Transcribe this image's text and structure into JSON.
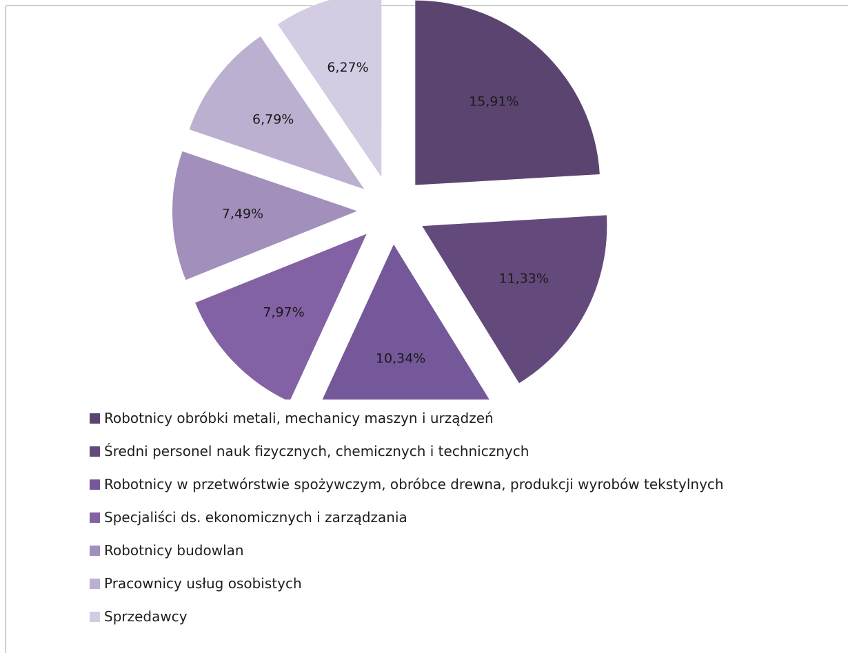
{
  "chart_data": {
    "type": "pie",
    "exploded": true,
    "legend_position": "bottom",
    "slices": [
      {
        "name": "Robotnicy obróbki metali, mechanicy maszyn i urządzeń",
        "value": 15.91,
        "label": "15,91%",
        "color": "#5c4470"
      },
      {
        "name": "Średni personel nauk fizycznych, chemicznych i technicznych",
        "value": 11.33,
        "label": "11,33%",
        "color": "#644a7c"
      },
      {
        "name": "Robotnicy w przetwórstwie spożywczym, obróbce drewna, produkcji wyrobów tekstylnych",
        "value": 10.34,
        "label": "10,34%",
        "color": "#74589a"
      },
      {
        "name": "Specjaliści ds. ekonomicznych i zarządzania",
        "value": 7.97,
        "label": "7,97%",
        "color": "#8262a4"
      },
      {
        "name": "Robotnicy budowlan",
        "value": 7.49,
        "label": "7,49%",
        "color": "#a28fbc"
      },
      {
        "name": "Pracownicy usług osobistych",
        "value": 6.79,
        "label": "6,79%",
        "color": "#bcb0d0"
      },
      {
        "name": "Sprzedawcy",
        "value": 6.27,
        "label": "6,27%",
        "color": "#d4cce2"
      }
    ]
  }
}
